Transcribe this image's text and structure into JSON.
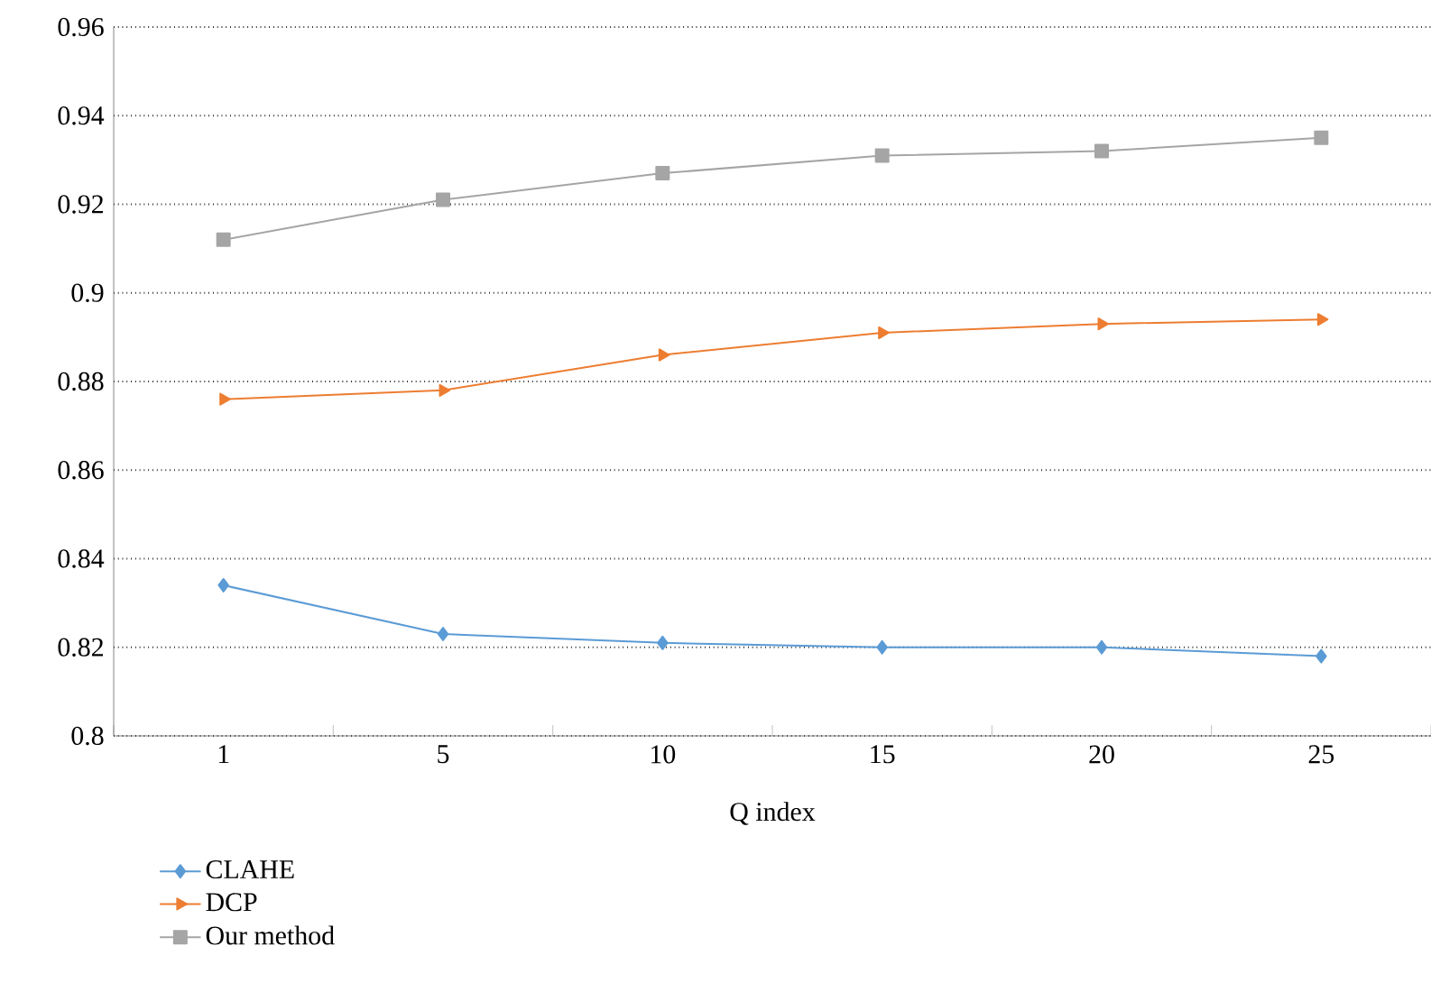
{
  "chart_data": {
    "type": "line",
    "xlabel": "Q index",
    "categories": [
      "1",
      "5",
      "10",
      "15",
      "20",
      "25"
    ],
    "series": [
      {
        "name": "CLAHE",
        "color": "#5b9bd5",
        "marker": "diamond",
        "values": [
          0.834,
          0.823,
          0.821,
          0.82,
          0.82,
          0.818
        ]
      },
      {
        "name": "DCP",
        "color": "#ed7d31",
        "marker": "triangle",
        "values": [
          0.876,
          0.878,
          0.886,
          0.891,
          0.893,
          0.894
        ]
      },
      {
        "name": "Our method",
        "color": "#a5a5a5",
        "marker": "square",
        "values": [
          0.912,
          0.921,
          0.927,
          0.931,
          0.932,
          0.935
        ]
      }
    ],
    "ylim": [
      0.8,
      0.96
    ],
    "yticks": [
      0.8,
      0.82,
      0.84,
      0.86,
      0.88,
      0.9,
      0.92,
      0.94,
      0.96
    ],
    "grid": "y",
    "legend": "bottom left",
    "line_style": "solid"
  }
}
